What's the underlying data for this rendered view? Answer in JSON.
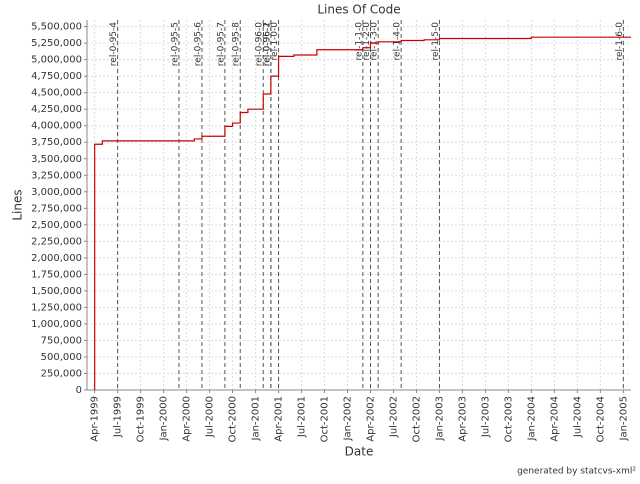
{
  "chart_data": {
    "type": "line",
    "title": "Lines Of Code",
    "x_label": "Date",
    "y_label": "Lines",
    "footer": "generated by statcvs-xml²",
    "grid": true,
    "xlim": [
      "1999-03",
      "2005-02"
    ],
    "xticks": [
      {
        "value": "1999-04",
        "label": "Apr-1999"
      },
      {
        "value": "1999-07",
        "label": "Jul-1999"
      },
      {
        "value": "1999-10",
        "label": "Oct-1999"
      },
      {
        "value": "2000-01",
        "label": "Jan-2000"
      },
      {
        "value": "2000-04",
        "label": "Apr-2000"
      },
      {
        "value": "2000-07",
        "label": "Jul-2000"
      },
      {
        "value": "2000-10",
        "label": "Oct-2000"
      },
      {
        "value": "2001-01",
        "label": "Jan-2001"
      },
      {
        "value": "2001-04",
        "label": "Apr-2001"
      },
      {
        "value": "2001-07",
        "label": "Jul-2001"
      },
      {
        "value": "2001-10",
        "label": "Oct-2001"
      },
      {
        "value": "2002-01",
        "label": "Jan-2002"
      },
      {
        "value": "2002-04",
        "label": "Apr-2002"
      },
      {
        "value": "2002-07",
        "label": "Jul-2002"
      },
      {
        "value": "2002-10",
        "label": "Oct-2002"
      },
      {
        "value": "2003-01",
        "label": "Jan-2003"
      },
      {
        "value": "2003-04",
        "label": "Apr-2003"
      },
      {
        "value": "2003-07",
        "label": "Jul-2003"
      },
      {
        "value": "2003-10",
        "label": "Oct-2003"
      },
      {
        "value": "2004-01",
        "label": "Jan-2004"
      },
      {
        "value": "2004-04",
        "label": "Apr-2004"
      },
      {
        "value": "2004-07",
        "label": "Jul-2004"
      },
      {
        "value": "2004-10",
        "label": "Oct-2004"
      },
      {
        "value": "2005-01",
        "label": "Jan-2005"
      }
    ],
    "ylim": [
      0,
      5600000
    ],
    "yticks": [
      0,
      {
        "value": 250000,
        "label": "250,000"
      },
      {
        "value": 500000,
        "label": "500,000"
      },
      {
        "value": 750000,
        "label": "750,000"
      },
      {
        "value": 1000000,
        "label": "1,000,000"
      },
      {
        "value": 1250000,
        "label": "1,250,000"
      },
      {
        "value": 1500000,
        "label": "1,500,000"
      },
      {
        "value": 1750000,
        "label": "1,750,000"
      },
      {
        "value": 2000000,
        "label": "2,000,000"
      },
      {
        "value": 2250000,
        "label": "2,250,000"
      },
      {
        "value": 2500000,
        "label": "2,500,000"
      },
      {
        "value": 2750000,
        "label": "2,750,000"
      },
      {
        "value": 3000000,
        "label": "3,000,000"
      },
      {
        "value": 3250000,
        "label": "3,250,000"
      },
      {
        "value": 3500000,
        "label": "3,500,000"
      },
      {
        "value": 3750000,
        "label": "3,750,000"
      },
      {
        "value": 4000000,
        "label": "4,000,000"
      },
      {
        "value": 4250000,
        "label": "4,250,000"
      },
      {
        "value": 4500000,
        "label": "4,500,000"
      },
      {
        "value": 4750000,
        "label": "4,750,000"
      },
      {
        "value": 5000000,
        "label": "5,000,000"
      },
      {
        "value": 5250000,
        "label": "5,250,000"
      },
      {
        "value": 5500000,
        "label": "5,500,000"
      }
    ],
    "color": "#cc0000",
    "x": [
      "1999-04",
      "1999-04",
      "1999-05",
      "2000-05",
      "2000-06",
      "2000-09",
      "2000-09",
      "2000-10",
      "2000-11",
      "2000-11",
      "2000-12",
      "2001-02",
      "2001-02",
      "2001-03",
      "2001-03",
      "2001-04",
      "2001-04",
      "2001-06",
      "2001-09",
      "2002-03",
      "2002-04",
      "2002-05",
      "2002-08",
      "2002-11",
      "2003-01",
      "2004-01",
      "2005-01"
    ],
    "values": [
      0,
      3720000,
      3770000,
      3800000,
      3840000,
      3920000,
      3990000,
      4040000,
      4100000,
      4200000,
      4250000,
      4420000,
      4480000,
      4550000,
      4750000,
      4900000,
      5050000,
      5070000,
      5150000,
      5180000,
      5250000,
      5270000,
      5290000,
      5300000,
      5320000,
      5340000,
      5340000
    ],
    "markers": [
      {
        "label": "rel-0-95-4",
        "x": "1999-07"
      },
      {
        "label": "rel-0-95-5",
        "x": "2000-03"
      },
      {
        "label": "rel-0-95-6",
        "x": "2000-06"
      },
      {
        "label": "rel-0-95-7",
        "x": "2000-09"
      },
      {
        "label": "rel-0-95-8",
        "x": "2000-11"
      },
      {
        "label": "rel-0-96-0",
        "x": "2001-02"
      },
      {
        "label": "rel-0-96-1",
        "x": "2001-03"
      },
      {
        "label": "rel-0-96-2",
        "x": "2001-03"
      },
      {
        "label": "rel-1-0-0",
        "x": "2001-04"
      },
      {
        "label": "rel-1-1-0",
        "x": "2002-03"
      },
      {
        "label": "rel-1-2-0",
        "x": "2002-04"
      },
      {
        "label": "rel-1-3-0",
        "x": "2002-05"
      },
      {
        "label": "rel-1-4-0",
        "x": "2002-08"
      },
      {
        "label": "rel-1-5-0",
        "x": "2003-01"
      },
      {
        "label": "rel-1-6-0",
        "x": "2005-01"
      }
    ]
  }
}
